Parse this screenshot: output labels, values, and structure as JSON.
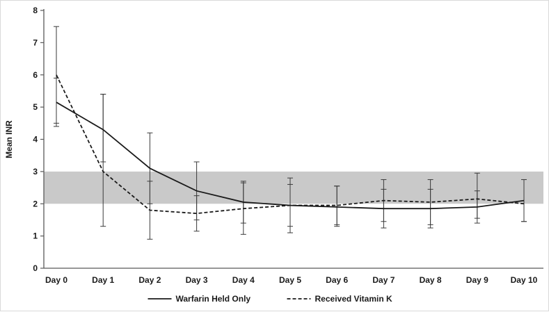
{
  "chart_data": {
    "type": "line",
    "title": "",
    "xlabel": "",
    "ylabel": "Mean INR",
    "ylim": [
      0,
      8
    ],
    "yticks": [
      0,
      1,
      2,
      3,
      4,
      5,
      6,
      7,
      8
    ],
    "grid": false,
    "legend_position": "bottom",
    "band": {
      "from": 2,
      "to": 3,
      "color": "#c9c9c9",
      "label": "therapeutic-range"
    },
    "x": [
      "Day 0",
      "Day 1",
      "Day 2",
      "Day 3",
      "Day 4",
      "Day 5",
      "Day 6",
      "Day 7",
      "Day 8",
      "Day 9",
      "Day 10"
    ],
    "series": [
      {
        "name": "Warfarin Held Only",
        "style": "solid",
        "values": [
          5.15,
          4.3,
          3.1,
          2.4,
          2.05,
          1.95,
          1.9,
          1.85,
          1.85,
          1.9,
          2.1
        ],
        "err_low": [
          4.4,
          3.3,
          2.0,
          1.5,
          1.4,
          1.3,
          1.3,
          1.25,
          1.25,
          1.4,
          1.45
        ],
        "err_high": [
          5.9,
          5.4,
          4.2,
          3.3,
          2.7,
          2.6,
          2.55,
          2.45,
          2.45,
          2.4,
          2.75
        ]
      },
      {
        "name": "Received Vitamin K",
        "style": "dashed",
        "values": [
          6.0,
          3.0,
          1.8,
          1.7,
          1.85,
          1.95,
          1.95,
          2.1,
          2.05,
          2.15,
          2.0
        ],
        "err_low": [
          4.5,
          1.3,
          0.9,
          1.15,
          1.05,
          1.1,
          1.35,
          1.45,
          1.35,
          1.55,
          1.45
        ],
        "err_high": [
          7.5,
          5.4,
          2.7,
          2.25,
          2.65,
          2.8,
          2.55,
          2.75,
          2.75,
          2.95,
          2.75
        ]
      }
    ],
    "colors": {
      "line": "#1a1a1a",
      "error_bar": "#3a3a3a",
      "axis": "#595959"
    }
  }
}
